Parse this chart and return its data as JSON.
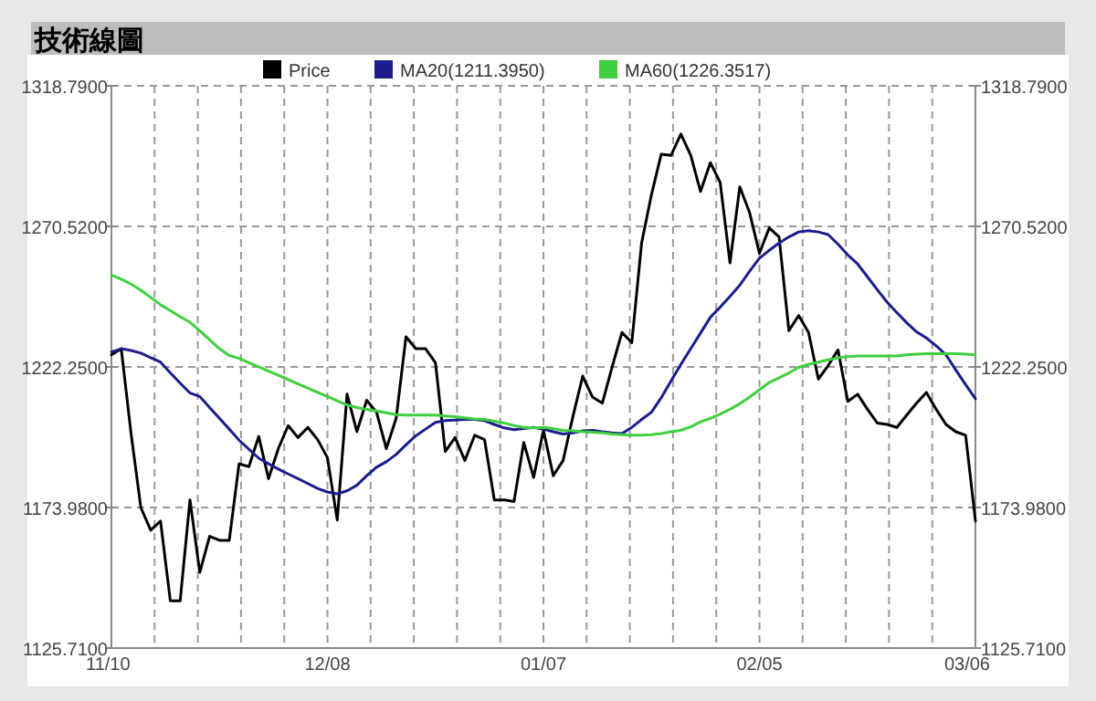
{
  "chart_data": {
    "type": "line",
    "title": "技術線圖",
    "categories": [
      "11/10",
      null,
      null,
      null,
      null,
      null,
      null,
      null,
      null,
      null,
      null,
      null,
      null,
      null,
      null,
      null,
      null,
      null,
      null,
      null,
      null,
      null,
      "12/08",
      null,
      null,
      null,
      null,
      null,
      null,
      null,
      null,
      null,
      null,
      null,
      null,
      null,
      null,
      null,
      null,
      null,
      null,
      null,
      null,
      null,
      "01/07",
      null,
      null,
      null,
      null,
      null,
      null,
      null,
      null,
      null,
      null,
      null,
      null,
      null,
      null,
      null,
      null,
      null,
      null,
      null,
      null,
      null,
      "02/05",
      null,
      null,
      null,
      null,
      null,
      null,
      null,
      null,
      null,
      null,
      null,
      null,
      null,
      null,
      null,
      null,
      null,
      null,
      null,
      null,
      null,
      "03/06"
    ],
    "series": [
      {
        "name": "Price",
        "color": "#000000",
        "values": [
          1226.4,
          1228.5,
          1199.4,
          1173.9,
          1166.2,
          1169.3,
          1141.9,
          1141.9,
          1176.6,
          1151.7,
          1164.1,
          1162.7,
          1162.7,
          1189.0,
          1188.0,
          1198.4,
          1183.9,
          1194.2,
          1202.1,
          1198.0,
          1201.5,
          1197.3,
          1191.1,
          1169.7,
          1212.9,
          1200.0,
          1210.8,
          1206.7,
          1194.2,
          1204.6,
          1232.6,
          1228.5,
          1228.5,
          1223.7,
          1193.2,
          1198.0,
          1190.1,
          1198.8,
          1197.3,
          1176.6,
          1176.6,
          1176.0,
          1196.3,
          1184.3,
          1200.5,
          1184.9,
          1190.1,
          1205.2,
          1219.1,
          1211.9,
          1209.8,
          1222.3,
          1234.1,
          1230.6,
          1264.8,
          1281.4,
          1295.3,
          1294.9,
          1302.2,
          1294.9,
          1282.5,
          1292.4,
          1285.6,
          1258.0,
          1284.1,
          1275.2,
          1261.3,
          1270.0,
          1266.9,
          1234.7,
          1239.9,
          1234.1,
          1218.1,
          1222.7,
          1228.1,
          1210.4,
          1212.9,
          1207.7,
          1203.0,
          1202.5,
          1201.5,
          1205.7,
          1209.8,
          1213.5,
          1207.7,
          1202.5,
          1200.0,
          1198.8,
          1169.3
        ]
      },
      {
        "name": "MA20(1211.3950)",
        "color": "#1c1c8c",
        "values": [
          1227.4,
          1228.5,
          1227.9,
          1227.0,
          1225.4,
          1223.9,
          1220.2,
          1216.7,
          1213.3,
          1212.1,
          1208.3,
          1204.6,
          1200.9,
          1197.1,
          1194.0,
          1190.9,
          1189.0,
          1187.2,
          1185.5,
          1183.9,
          1182.2,
          1180.5,
          1179.3,
          1178.7,
          1179.7,
          1181.6,
          1184.9,
          1187.8,
          1189.7,
          1192.2,
          1195.5,
          1198.6,
          1200.9,
          1203.2,
          1203.8,
          1204.0,
          1204.2,
          1204.2,
          1203.8,
          1202.5,
          1201.3,
          1200.7,
          1201.1,
          1201.5,
          1200.9,
          1200.0,
          1199.2,
          1199.6,
          1200.3,
          1200.5,
          1200.0,
          1199.6,
          1199.4,
          1201.5,
          1204.2,
          1206.7,
          1211.7,
          1217.5,
          1223.1,
          1228.5,
          1233.9,
          1239.3,
          1242.8,
          1246.5,
          1250.3,
          1255.1,
          1259.6,
          1262.3,
          1264.8,
          1266.9,
          1268.6,
          1269.0,
          1268.6,
          1267.7,
          1264.4,
          1260.7,
          1257.6,
          1253.2,
          1248.8,
          1244.5,
          1240.9,
          1237.4,
          1234.3,
          1232.2,
          1229.5,
          1226.4,
          1221.2,
          1216.2,
          1211.3
        ]
      },
      {
        "name": "MA60(1226.3517)",
        "color": "#3fcf3f",
        "values": [
          1253.8,
          1252.4,
          1250.7,
          1248.6,
          1246.1,
          1243.6,
          1241.6,
          1239.5,
          1237.6,
          1234.7,
          1231.6,
          1228.5,
          1226.2,
          1225.2,
          1223.7,
          1222.3,
          1220.8,
          1219.4,
          1217.9,
          1216.4,
          1215.0,
          1213.5,
          1212.1,
          1210.6,
          1209.2,
          1208.3,
          1207.7,
          1207.1,
          1206.5,
          1205.9,
          1205.7,
          1205.7,
          1205.7,
          1205.7,
          1205.4,
          1205.2,
          1204.8,
          1204.4,
          1204.2,
          1203.6,
          1203.0,
          1202.1,
          1201.5,
          1201.3,
          1201.5,
          1201.1,
          1200.5,
          1200.3,
          1200.0,
          1199.8,
          1199.6,
          1199.2,
          1199.0,
          1198.8,
          1198.8,
          1199.0,
          1199.4,
          1200.0,
          1200.5,
          1201.7,
          1203.4,
          1204.6,
          1206.1,
          1207.7,
          1209.6,
          1211.9,
          1214.4,
          1216.9,
          1218.5,
          1220.2,
          1222.1,
          1223.1,
          1223.9,
          1224.7,
          1225.4,
          1225.8,
          1226.0,
          1226.0,
          1226.0,
          1226.0,
          1226.0,
          1226.4,
          1226.6,
          1226.8,
          1226.8,
          1226.8,
          1226.8,
          1226.6,
          1226.4
        ]
      }
    ],
    "ylim": [
      1125.71,
      1318.79
    ],
    "yticks": [
      {
        "value": 1125.71,
        "label": "1125.7100"
      },
      {
        "value": 1173.98,
        "label": "1173.9800"
      },
      {
        "value": 1222.25,
        "label": "1222.2500"
      },
      {
        "value": 1270.52,
        "label": "1270.5200"
      },
      {
        "value": 1318.79,
        "label": "1318.7900"
      }
    ],
    "y2lim": [
      1125.71,
      1318.79
    ],
    "y2ticks": [
      {
        "value": 1125.71,
        "label": "1125.7100"
      },
      {
        "value": 1173.98,
        "label": "1173.9800"
      },
      {
        "value": 1222.25,
        "label": "1222.2500"
      },
      {
        "value": 1270.52,
        "label": "1270.5200"
      },
      {
        "value": 1318.79,
        "label": "1318.7900"
      }
    ],
    "grid": true,
    "legend": "top"
  }
}
